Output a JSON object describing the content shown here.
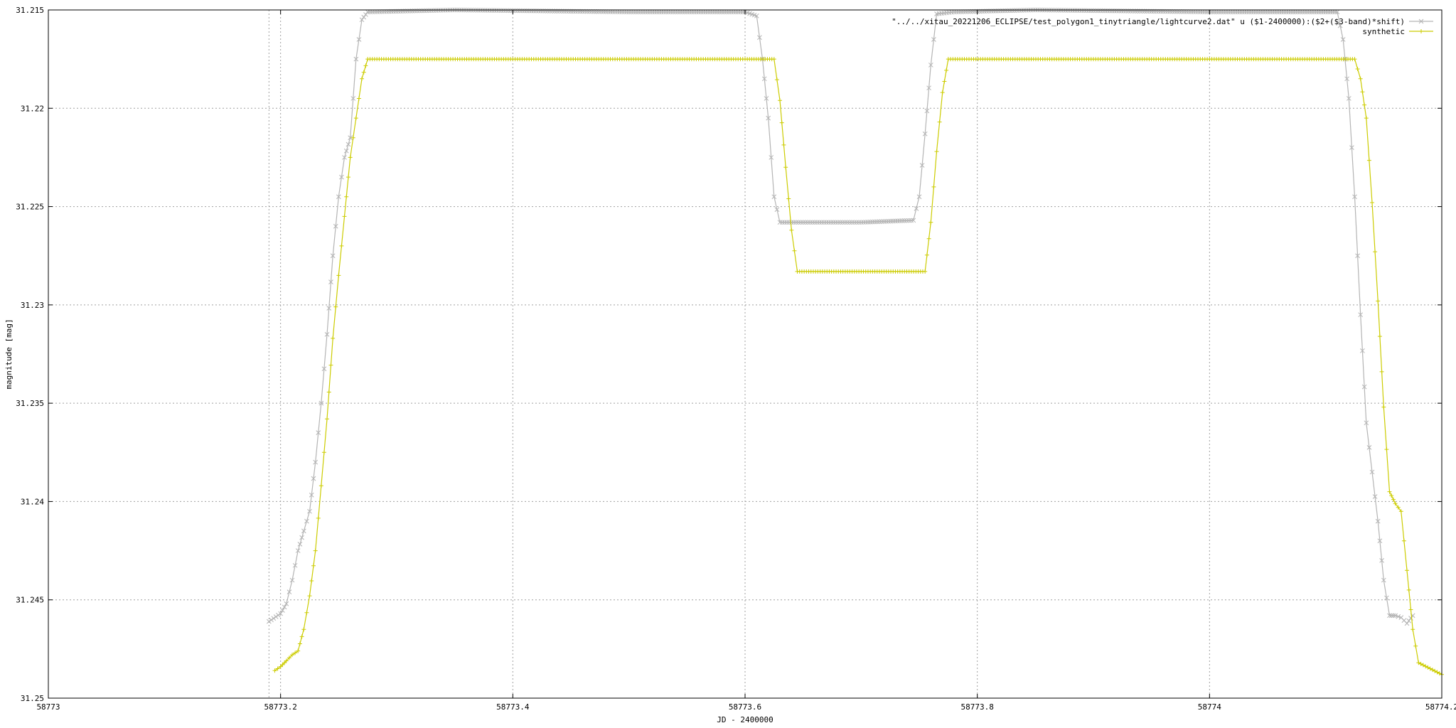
{
  "chart_data": {
    "type": "line",
    "title": "",
    "xlabel": "JD - 2400000",
    "ylabel": "magnitude [mag]",
    "xlim": [
      58773.0,
      58774.2
    ],
    "ylim": [
      31.215,
      31.25
    ],
    "y_inverted": true,
    "grid": true,
    "legend_position": "top-right",
    "x_ticks": [
      58773.0,
      58773.2,
      58773.4,
      58773.6,
      58773.8,
      58774.0,
      58774.2
    ],
    "x_tick_labels": [
      "58773",
      "58773.2",
      "58773.4",
      "58773.6",
      "58773.8",
      "58774",
      "58774.2"
    ],
    "y_ticks": [
      31.215,
      31.22,
      31.225,
      31.23,
      31.235,
      31.24,
      31.245,
      31.25
    ],
    "y_tick_labels": [
      "31.215",
      "31.22",
      "31.225",
      "31.23",
      "31.235",
      "31.24",
      "31.245",
      "31.25"
    ],
    "vertical_line_x": 58773.19,
    "series": [
      {
        "name": "\"../../xitau_20221206_ECLIPSE/test_polygon1_tinytriangle/lightcurve2.dat\" u ($1-2400000):($2+($3-band)*shift)",
        "color": "#b4b4b4",
        "marker": "x",
        "points": [
          [
            58773.19,
            31.2461
          ],
          [
            58773.2,
            31.2457
          ],
          [
            58773.205,
            31.2452
          ],
          [
            58773.21,
            31.244
          ],
          [
            58773.215,
            31.2425
          ],
          [
            58773.22,
            31.2415
          ],
          [
            58773.225,
            31.2405
          ],
          [
            58773.23,
            31.238
          ],
          [
            58773.235,
            31.235
          ],
          [
            58773.24,
            31.2315
          ],
          [
            58773.245,
            31.2275
          ],
          [
            58773.25,
            31.2245
          ],
          [
            58773.255,
            31.2225
          ],
          [
            58773.26,
            31.2215
          ],
          [
            58773.265,
            31.2175
          ],
          [
            58773.27,
            31.2155
          ],
          [
            58773.275,
            31.2151
          ],
          [
            58773.35,
            31.215
          ],
          [
            58773.5,
            31.2151
          ],
          [
            58773.6,
            31.2151
          ],
          [
            58773.61,
            31.2153
          ],
          [
            58773.615,
            31.2175
          ],
          [
            58773.62,
            31.2205
          ],
          [
            58773.625,
            31.2245
          ],
          [
            58773.63,
            31.2258
          ],
          [
            58773.7,
            31.2258
          ],
          [
            58773.745,
            31.2257
          ],
          [
            58773.75,
            31.2245
          ],
          [
            58773.755,
            31.2213
          ],
          [
            58773.76,
            31.2178
          ],
          [
            58773.765,
            31.2152
          ],
          [
            58773.78,
            31.2151
          ],
          [
            58773.85,
            31.215
          ],
          [
            58774.0,
            31.2151
          ],
          [
            58774.11,
            31.2151
          ],
          [
            58774.115,
            31.2165
          ],
          [
            58774.12,
            31.2195
          ],
          [
            58774.125,
            31.2245
          ],
          [
            58774.13,
            31.2305
          ],
          [
            58774.135,
            31.236
          ],
          [
            58774.14,
            31.2385
          ],
          [
            58774.145,
            31.241
          ],
          [
            58774.15,
            31.244
          ],
          [
            58774.155,
            31.2458
          ],
          [
            58774.16,
            31.2458
          ],
          [
            58774.165,
            31.2459
          ],
          [
            58774.17,
            31.2462
          ],
          [
            58774.175,
            31.2458
          ]
        ]
      },
      {
        "name": "synthetic",
        "color": "#cccc00",
        "marker": "+",
        "points": [
          [
            58773.195,
            31.2486
          ],
          [
            58773.2,
            31.2484
          ],
          [
            58773.205,
            31.2481
          ],
          [
            58773.21,
            31.2478
          ],
          [
            58773.215,
            31.2476
          ],
          [
            58773.22,
            31.2465
          ],
          [
            58773.225,
            31.2448
          ],
          [
            58773.23,
            31.2425
          ],
          [
            58773.235,
            31.2392
          ],
          [
            58773.24,
            31.2358
          ],
          [
            58773.245,
            31.2317
          ],
          [
            58773.25,
            31.2285
          ],
          [
            58773.255,
            31.2255
          ],
          [
            58773.26,
            31.2225
          ],
          [
            58773.265,
            31.2205
          ],
          [
            58773.27,
            31.2185
          ],
          [
            58773.275,
            31.2175
          ],
          [
            58773.4,
            31.2175
          ],
          [
            58773.6,
            31.2175
          ],
          [
            58773.625,
            31.2175
          ],
          [
            58773.63,
            31.2196
          ],
          [
            58773.635,
            31.223
          ],
          [
            58773.64,
            31.2262
          ],
          [
            58773.645,
            31.2283
          ],
          [
            58773.7,
            31.2283
          ],
          [
            58773.755,
            31.2283
          ],
          [
            58773.76,
            31.2258
          ],
          [
            58773.765,
            31.2222
          ],
          [
            58773.77,
            31.2192
          ],
          [
            58773.775,
            31.2175
          ],
          [
            58773.9,
            31.2175
          ],
          [
            58774.1,
            31.2175
          ],
          [
            58774.125,
            31.2175
          ],
          [
            58774.13,
            31.2185
          ],
          [
            58774.135,
            31.2205
          ],
          [
            58774.14,
            31.2248
          ],
          [
            58774.145,
            31.2298
          ],
          [
            58774.15,
            31.2352
          ],
          [
            58774.155,
            31.2395
          ],
          [
            58774.16,
            31.2401
          ],
          [
            58774.165,
            31.2405
          ],
          [
            58774.17,
            31.2435
          ],
          [
            58774.175,
            31.2465
          ],
          [
            58774.18,
            31.2482
          ],
          [
            58774.19,
            31.2485
          ],
          [
            58774.2,
            31.2488
          ]
        ]
      }
    ]
  }
}
